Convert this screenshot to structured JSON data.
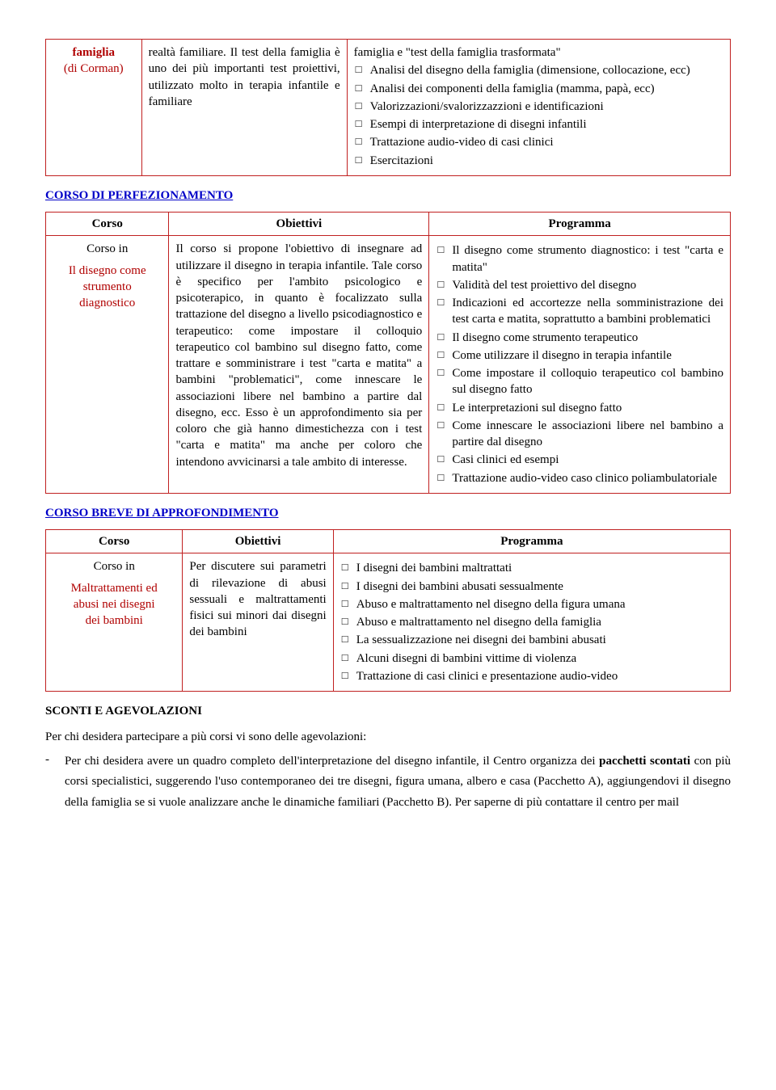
{
  "table1": {
    "col0_line1": "famiglia",
    "col0_line2": "(di Corman)",
    "col1_text": "realtà familiare. Il test della famiglia è uno dei più importanti test proiettivi, utilizzato molto in terapia infantile e familiare",
    "col2_intro": "famiglia e \"test della famiglia trasformata\"",
    "col2_items": [
      "Analisi del disegno della famiglia (dimensione, collocazione, ecc)",
      "Analisi dei componenti della famiglia (mamma, papà, ecc)",
      "Valorizzazioni/svalorizzazzioni e identificazioni",
      "Esempi di interpretazione di disegni infantili",
      "Trattazione audio-video di casi clinici",
      "Esercitazioni"
    ]
  },
  "section2_heading": "CORSO DI PERFEZIONAMENTO",
  "table2": {
    "headers": [
      "Corso",
      "Obiettivi",
      "Programma"
    ],
    "col0_line1": "Corso in",
    "col0_line2": "Il disegno come",
    "col0_line3": "strumento",
    "col0_line4": "diagnostico",
    "col1_text": "Il corso si propone l'obiettivo di insegnare ad utilizzare il disegno in terapia infantile. Tale corso è specifico per l'ambito psicologico e psicoterapico, in quanto è focalizzato sulla trattazione del disegno a livello psicodiagnostico e terapeutico: come impostare il colloquio terapeutico col bambino sul disegno fatto, come trattare e somministrare i test \"carta e matita\" a bambini \"problematici\", come innescare le associazioni libere nel bambino a partire dal disegno, ecc. Esso è un approfondimento sia per coloro che già hanno dimestichezza con i test \"carta e matita\" ma anche per coloro che intendono avvicinarsi a tale ambito di interesse.",
    "col2_items": [
      "Il disegno come strumento diagnostico: i test \"carta e matita\"",
      "Validità del test proiettivo del disegno",
      "Indicazioni ed accortezze nella somministrazione dei test carta e matita, soprattutto a bambini problematici",
      "Il disegno come strumento terapeutico",
      "Come utilizzare il disegno in terapia infantile",
      "Come impostare il colloquio terapeutico col bambino sul disegno fatto",
      "Le interpretazioni sul disegno fatto",
      "Come innescare le associazioni libere nel bambino a partire dal disegno",
      "Casi clinici ed esempi",
      "Trattazione audio-video caso clinico poliambulatoriale"
    ]
  },
  "section3_heading": "CORSO BREVE DI APPROFONDIMENTO",
  "table3": {
    "headers": [
      "Corso",
      "Obiettivi",
      "Programma"
    ],
    "col0_line1": "Corso in",
    "col0_line2": "Maltrattamenti ed",
    "col0_line3": "abusi nei disegni",
    "col0_line4": "dei bambini",
    "col1_text": "Per discutere sui parametri di rilevazione di abusi sessuali e maltrattamenti fisici sui minori dai disegni dei bambini",
    "col2_items": [
      "I disegni dei bambini maltrattati",
      "I disegni dei bambini abusati sessualmente",
      "Abuso e maltrattamento nel disegno della figura umana",
      "Abuso e maltrattamento nel disegno della famiglia",
      "La sessualizzazione nei disegni dei bambini abusati",
      "Alcuni disegni di bambini vittime di violenza",
      "Trattazione di casi clinici e presentazione audio-video"
    ]
  },
  "section4_heading": "SCONTI E AGEVOLAZIONI",
  "para1": "Per chi desidera partecipare a più corsi vi sono delle agevolazioni:",
  "dash_pre": "Per chi desidera avere un quadro completo dell'interpretazione del disegno infantile, il Centro organizza dei ",
  "dash_bold": "pacchetti scontati",
  "dash_post": " con più corsi specialistici, suggerendo l'uso contemporaneo dei tre disegni, figura umana, albero e casa (Pacchetto A), aggiungendovi il disegno della famiglia se si vuole analizzare anche le dinamiche familiari (Pacchetto B). Per saperne di più contattare il centro per mail"
}
